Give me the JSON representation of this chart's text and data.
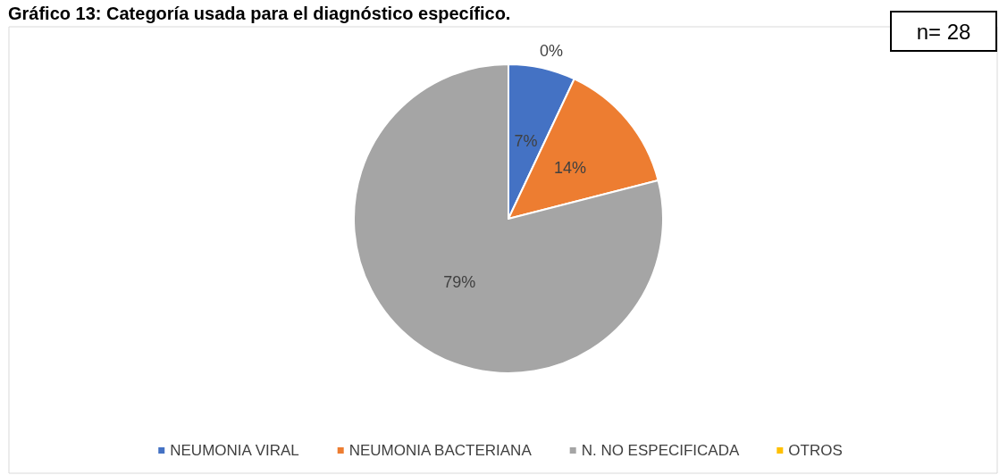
{
  "chart_data": {
    "type": "pie",
    "title": "Gráfico 13: Categoría usada para el diagnóstico específico.",
    "categories": [
      "NEUMONIA VIRAL",
      "NEUMONIA BACTERIANA",
      "N. NO ESPECIFICADA",
      "OTROS"
    ],
    "values": [
      7,
      14,
      79,
      0
    ],
    "colors": [
      "#4472c4",
      "#ed7d31",
      "#a5a5a5",
      "#ffc000"
    ],
    "value_labels": [
      "7%",
      "14%",
      "79%",
      "0%"
    ],
    "legend": "bottom",
    "annotations": [
      "n= 28"
    ]
  }
}
